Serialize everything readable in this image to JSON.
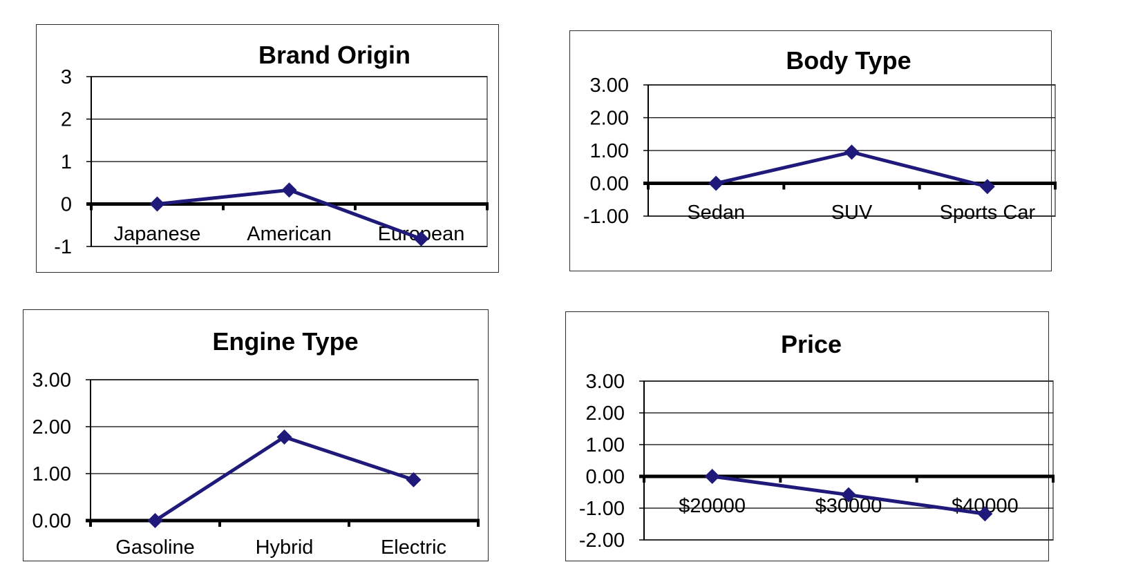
{
  "colors": {
    "series": "#1f1a7a",
    "grid": "#000000",
    "plot_border": "#808080",
    "zero_line": "#000000"
  },
  "chart_data": [
    {
      "type": "line",
      "title": "Brand Origin",
      "categories": [
        "Japanese",
        "American",
        "European"
      ],
      "series": [
        {
          "values": [
            0,
            0.33,
            -0.82
          ]
        }
      ],
      "ylim": [
        -1,
        3
      ],
      "yticks": [
        3,
        2,
        1,
        0,
        -1
      ],
      "ytick_labels": [
        "3",
        "2",
        "1",
        "0",
        "-1"
      ],
      "grid": true,
      "marker": "diamond"
    },
    {
      "type": "line",
      "title": "Body Type",
      "categories": [
        "Sedan",
        "SUV",
        "Sports Car"
      ],
      "series": [
        {
          "values": [
            0,
            0.95,
            -0.1
          ]
        }
      ],
      "ylim": [
        -1,
        3
      ],
      "yticks": [
        3,
        2,
        1,
        0,
        -1
      ],
      "ytick_labels": [
        "3.00",
        "2.00",
        "1.00",
        "0.00",
        "-1.00"
      ],
      "grid": true,
      "marker": "diamond"
    },
    {
      "type": "line",
      "title": "Engine Type",
      "categories": [
        "Gasoline",
        "Hybrid",
        "Electric"
      ],
      "series": [
        {
          "values": [
            0,
            1.78,
            0.87
          ]
        }
      ],
      "ylim": [
        0,
        3
      ],
      "yticks": [
        3,
        2,
        1,
        0
      ],
      "ytick_labels": [
        "3.00",
        "2.00",
        "1.00",
        "0.00"
      ],
      "grid": true,
      "marker": "diamond"
    },
    {
      "type": "line",
      "title": "Price",
      "categories": [
        "$20000",
        "$30000",
        "$40000"
      ],
      "series": [
        {
          "values": [
            0,
            -0.58,
            -1.18
          ]
        }
      ],
      "ylim": [
        -2,
        3
      ],
      "yticks": [
        3,
        2,
        1,
        0,
        -1,
        -2
      ],
      "ytick_labels": [
        "3.00",
        "2.00",
        "1.00",
        "0.00",
        "-1.00",
        "-2.00"
      ],
      "grid": true,
      "marker": "diamond"
    }
  ]
}
